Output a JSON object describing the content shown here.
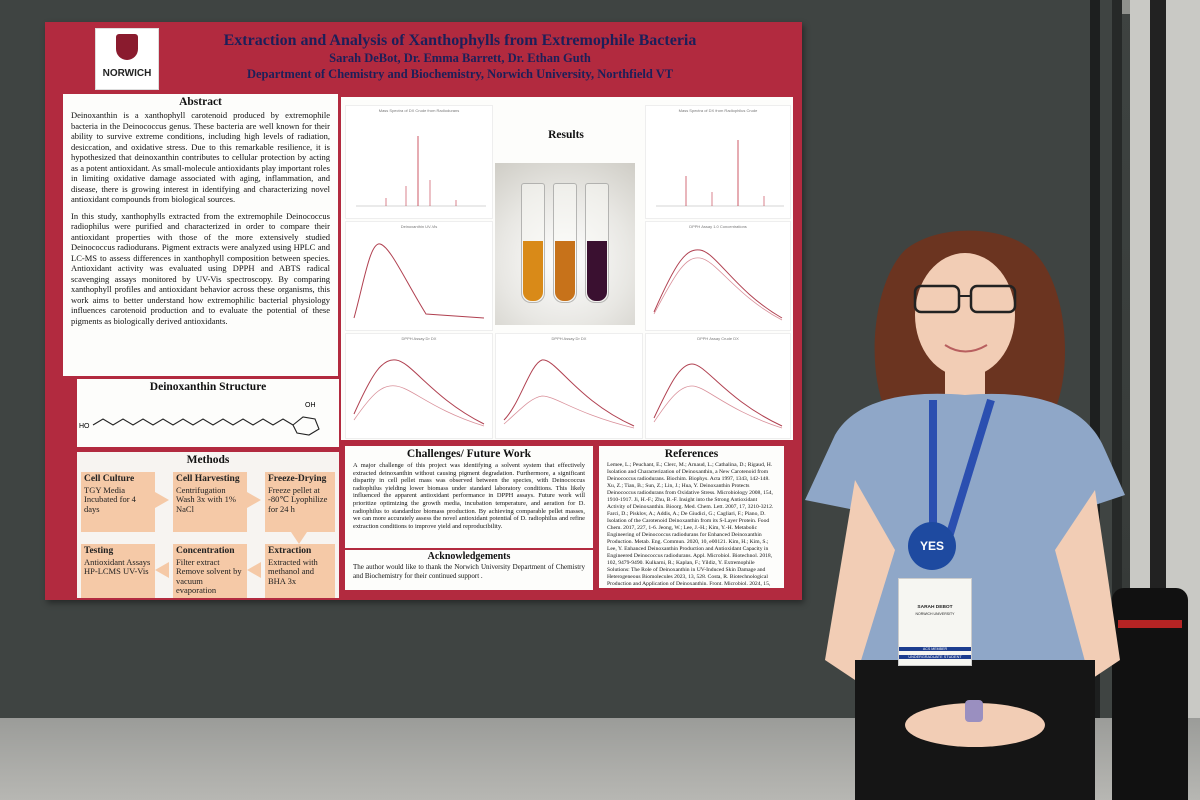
{
  "poster": {
    "logo_text": "NORWICH",
    "title": "Extraction and Analysis of Xanthophylls from Extremophile Bacteria",
    "authors": "Sarah DeBot, Dr. Emma Barrett, Dr. Ethan Guth",
    "department": "Department of Chemistry and Biochemistry, Norwich University, Northfield VT",
    "abstract": {
      "heading": "Abstract",
      "p1": "Deinoxanthin is a xanthophyll carotenoid produced by extremophile bacteria in the Deinococcus genus. These bacteria are well known for their ability to survive extreme conditions, including high levels of radiation, desiccation, and oxidative stress. Due to this remarkable resilience, it is hypothesized that deinoxanthin contributes to cellular protection by acting as a potent antioxidant. As small-molecule antioxidants play important roles in limiting oxidative damage associated with aging, inflammation, and disease, there is growing interest in identifying and characterizing novel antioxidant compounds from biological sources.",
      "p2": "In this study, xanthophylls extracted from the extremophile Deinococcus radiophilus were purified and characterized in order to compare their antioxidant properties with those of the more extensively studied Deinococcus radiodurans. Pigment extracts were analyzed using HPLC and LC-MS to assess differences in xanthophyll composition between species. Antioxidant activity was evaluated using DPPH and ABTS radical scavenging assays monitored by UV-Vis spectroscopy. By comparing xanthophyll profiles and antioxidant behavior across these organisms, this work aims to better understand how extremophilic bacterial physiology influences carotenoid production and to evaluate the potential of these pigments as biologically derived antioxidants."
    },
    "structure": {
      "heading": "Deinoxanthin Structure",
      "label_ho": "HO",
      "label_oh": "OH"
    },
    "methods": {
      "heading": "Methods",
      "cell_culture": {
        "title": "Cell Culture",
        "text": "TGY Media Incubated for 4 days"
      },
      "cell_harvesting": {
        "title": "Cell Harvesting",
        "text": "Centrifugation Wash 3x with 1% NaCl"
      },
      "freeze_drying": {
        "title": "Freeze-Drying",
        "text": "Freeze pellet at -80℃ Lyophilize for 24 h"
      },
      "testing": {
        "title": "Testing",
        "text": "Antioxidant Assays HP-LCMS UV-Vis"
      },
      "concentration": {
        "title": "Concentration",
        "text": "Filter extract Remove solvent by vacuum evaporation"
      },
      "extraction": {
        "title": "Extraction",
        "text": "Extracted with methanol and BHA 3x"
      }
    },
    "results": {
      "heading": "Results",
      "plot1_caption": "Mass Spectra of DX Crude from Radiodurans",
      "plot2_caption": "Mass Spectra of DX from Radiophilus Crude",
      "plot3_caption": "Deinoxanthin UV-Vis",
      "plot4_caption": "DPPH Assay 1.0 Concentrations",
      "plot5_caption": "DPPH Assay Dr DX",
      "plot6_caption": "DPPH Assay Dr DX",
      "plot7_caption": "DPPH Assay Crude DX"
    },
    "challenges": {
      "heading": "Challenges/ Future Work",
      "text": "A major challenge of this project was identifying a solvent system that effectively extracted deinoxanthin without causing pigment degradation. Furthermore, a significant disparity in cell pellet mass was observed between the species, with Deinococcus radiophilus yielding lower biomass under standard laboratory conditions. This likely influenced the apparent antioxidant performance in DPPH assays. Future work will prioritize optimizing the growth media, incubation temperature, and aeration for D. radiophilus to standardize biomass production. By achieving comparable pellet masses, we can more accurately assess the novel antioxidant potential of D. radiophilus and refine extraction conditions to improve yield and reproducibility."
    },
    "acknowledgements": {
      "heading": "Acknowledgements",
      "text": "The author would like to thank the Norwich University Department of Chemistry and Biochemistry for their continued support ."
    },
    "references": {
      "heading": "References",
      "text": "Lemee, L.; Peuchant, E.; Clerc, M.; Arnaud, L.; Cathalina, D.; Rigaud, H. Isolation and Characterization of Deinoxanthin, a New Carotenoid from Deinococcus radiodurans. Biochim. Biophys. Acta 1997, 1343, 142-148. Xu, Z.; Tian, B.; Sun, Z.; Lin, J.; Hua, Y. Deinoxanthin Protects Deinococcus radiodurans from Oxidative Stress. Microbiology 2008, 154, 1910-1917. Ji, H.-F.; Zhu, B.-F. Insight into the Strong Antioxidant Activity of Deinoxanthin. Bioorg. Med. Chem. Lett. 2007, 17, 3210-3212. Farci, D.; Pisklov, A.; Addis, A.; De Giudici, G.; Cagliari, F.; Piano, D. Isolation of the Carotenoid Deinoxanthin from its S-Layer Protein. Food Chem. 2017, 227, 1-6. Jeong, W.; Lee, J.-H.; Kim, Y.-H. Metabolic Engineering of Deinococcus radiodurans for Enhanced Deinoxanthin Production. Metab. Eng. Commun. 2020, 10, e00121. Kim, H.; Kim, S.; Lee, Y. Enhanced Deinoxanthin Production and Antioxidant Capacity in Engineered Deinococcus radiodurans. Appl. Microbiol. Biotechnol. 2018, 102, 9479-9490. Kulkarni, R.; Kaplan, F.; Yildiz, Y. Extremophile Solutions: The Role of Deinoxanthin in UV-Induced Skin Damage and Heterogeneous Biomolecules 2023, 13, 528. Costa, R. Biotechnological Production and Application of Deinoxanthin. Front. Microbiol. 2024, 15, 1447785."
    }
  },
  "badge": {
    "yes_label": "YES",
    "name": "SARAH DEBOT",
    "school": "NORWICH UNIVERSITY",
    "member_label": "ACS MEMBER",
    "status_label": "UNDERGRADUATE STUDENT"
  }
}
